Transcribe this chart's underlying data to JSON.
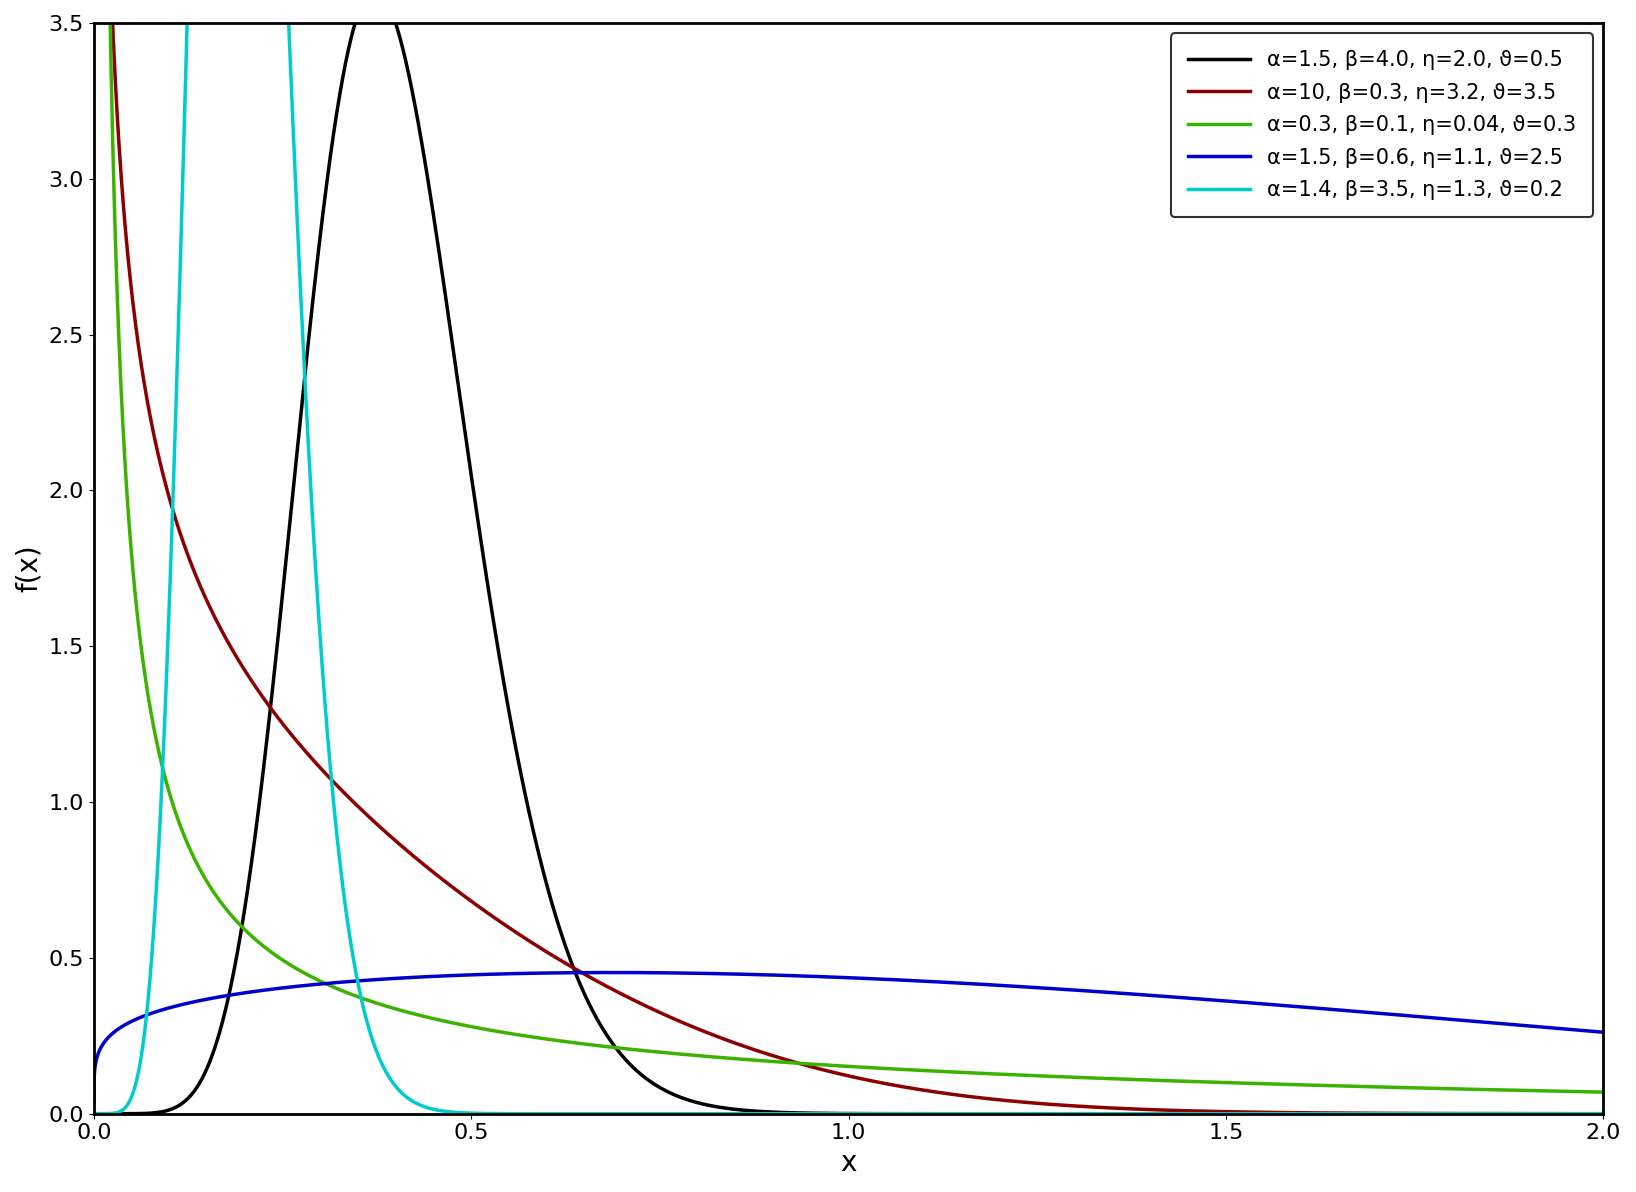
{
  "curves": [
    {
      "alpha": 1.5,
      "beta": 4.0,
      "eta": 2.0,
      "vartheta": 0.5,
      "color": "#000000",
      "label": "α=1.5, β=4.0, η=2.0, ϑ=0.5"
    },
    {
      "alpha": 10,
      "beta": 0.3,
      "eta": 3.2,
      "vartheta": 3.5,
      "color": "#8b0000",
      "label": "α=10, β=0.3, η=3.2, ϑ=3.5"
    },
    {
      "alpha": 0.3,
      "beta": 0.1,
      "eta": 0.04,
      "vartheta": 0.3,
      "color": "#3cb300",
      "label": "α=0.3, β=0.1, η=0.04, ϑ=0.3"
    },
    {
      "alpha": 1.5,
      "beta": 0.6,
      "eta": 1.1,
      "vartheta": 2.5,
      "color": "#0000cc",
      "label": "α=1.5, β=0.6, η=1.1, ϑ=2.5"
    },
    {
      "alpha": 1.4,
      "beta": 3.5,
      "eta": 1.3,
      "vartheta": 0.2,
      "color": "#00cccc",
      "label": "α=1.4, β=3.5, η=1.3, ϑ=0.2"
    }
  ],
  "xlim": [
    0.0,
    2.0
  ],
  "ylim": [
    0.0,
    3.5
  ],
  "xlabel": "x",
  "ylabel": "f(x)",
  "xticks": [
    0.0,
    0.5,
    1.0,
    1.5,
    2.0
  ],
  "yticks": [
    0.0,
    0.5,
    1.0,
    1.5,
    2.0,
    2.5,
    3.0,
    3.5
  ],
  "background_color": "#ffffff",
  "legend_loc": "upper right"
}
